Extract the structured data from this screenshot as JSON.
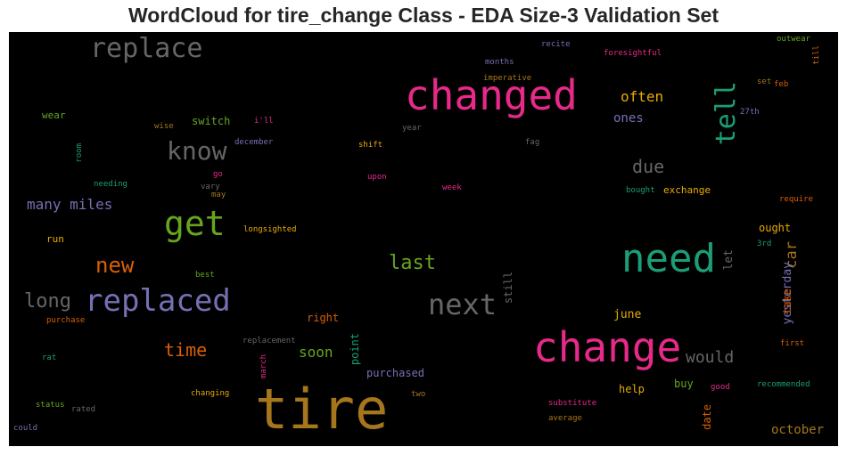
{
  "chart_data": {
    "type": "wordcloud",
    "title": "WordCloud for tire_change Class - EDA Size-3 Validation Set",
    "colors": {
      "pink": "#e7298a",
      "green": "#1b9e77",
      "lime": "#66a61e",
      "gray": "#666666",
      "purple": "#7570b3",
      "orange": "#d95f02",
      "gold": "#a6761d",
      "yellow": "#e6ab02",
      "background": "#000000"
    },
    "words": [
      {
        "text": "tire",
        "color": "#a6761d",
        "vertical": false
      },
      {
        "text": "changed",
        "color": "#e7298a",
        "vertical": false
      },
      {
        "text": "change",
        "color": "#e7298a",
        "vertical": false
      },
      {
        "text": "need",
        "color": "#1b9e77",
        "vertical": false
      },
      {
        "text": "replaced",
        "color": "#7570b3",
        "vertical": false
      },
      {
        "text": "get",
        "color": "#66a61e",
        "vertical": false
      },
      {
        "text": "replace",
        "color": "#666666",
        "vertical": false
      },
      {
        "text": "next",
        "color": "#666666",
        "vertical": false
      },
      {
        "text": "tell",
        "color": "#1b9e77",
        "vertical": true
      },
      {
        "text": "know",
        "color": "#666666",
        "vertical": false
      },
      {
        "text": "new",
        "color": "#d95f02",
        "vertical": false
      },
      {
        "text": "long",
        "color": "#666666",
        "vertical": false
      },
      {
        "text": "last",
        "color": "#66a61e",
        "vertical": false
      },
      {
        "text": "time",
        "color": "#d95f02",
        "vertical": false
      },
      {
        "text": "due",
        "color": "#666666",
        "vertical": false
      },
      {
        "text": "many miles",
        "color": "#7570b3",
        "vertical": false
      },
      {
        "text": "often",
        "color": "#e6ab02",
        "vertical": false
      },
      {
        "text": "would",
        "color": "#666666",
        "vertical": false
      },
      {
        "text": "soon",
        "color": "#66a61e",
        "vertical": false
      },
      {
        "text": "ones",
        "color": "#7570b3",
        "vertical": false
      },
      {
        "text": "car",
        "color": "#a6761d",
        "vertical": true
      },
      {
        "text": "october",
        "color": "#a6761d",
        "vertical": false
      },
      {
        "text": "exchange",
        "color": "#e6ab02",
        "vertical": false
      },
      {
        "text": "june",
        "color": "#e6ab02",
        "vertical": false
      },
      {
        "text": "purchased",
        "color": "#7570b3",
        "vertical": false
      },
      {
        "text": "right",
        "color": "#d95f02",
        "vertical": false
      },
      {
        "text": "ought",
        "color": "#e6ab02",
        "vertical": false
      },
      {
        "text": "help",
        "color": "#e6ab02",
        "vertical": false
      },
      {
        "text": "buy",
        "color": "#66a61e",
        "vertical": false
      },
      {
        "text": "yesterday",
        "color": "#7570b3",
        "vertical": true
      },
      {
        "text": "let",
        "color": "#666666",
        "vertical": true
      },
      {
        "text": "run",
        "color": "#e6ab02",
        "vertical": false
      },
      {
        "text": "switch",
        "color": "#66a61e",
        "vertical": false
      },
      {
        "text": "wear",
        "color": "#66a61e",
        "vertical": false
      },
      {
        "text": "point",
        "color": "#1b9e77",
        "vertical": true
      },
      {
        "text": "take",
        "color": "#d95f02",
        "vertical": true
      },
      {
        "text": "still",
        "color": "#666666",
        "vertical": true
      },
      {
        "text": "date",
        "color": "#d95f02",
        "vertical": true
      },
      {
        "text": "recite",
        "color": "#7570b3",
        "vertical": false
      },
      {
        "text": "foresightful",
        "color": "#e7298a",
        "vertical": false
      },
      {
        "text": "outwear",
        "color": "#66a61e",
        "vertical": false
      },
      {
        "text": "till",
        "color": "#d95f02",
        "vertical": true
      },
      {
        "text": "months",
        "color": "#7570b3",
        "vertical": false
      },
      {
        "text": "imperative",
        "color": "#a6761d",
        "vertical": false
      },
      {
        "text": "set",
        "color": "#a6761d",
        "vertical": false
      },
      {
        "text": "feb",
        "color": "#d95f02",
        "vertical": false
      },
      {
        "text": "27th",
        "color": "#7570b3",
        "vertical": false
      },
      {
        "text": "i'll",
        "color": "#e7298a",
        "vertical": false
      },
      {
        "text": "wise",
        "color": "#a6761d",
        "vertical": false
      },
      {
        "text": "year",
        "color": "#666666",
        "vertical": false
      },
      {
        "text": "december",
        "color": "#7570b3",
        "vertical": false
      },
      {
        "text": "shift",
        "color": "#e6ab02",
        "vertical": false
      },
      {
        "text": "fag",
        "color": "#666666",
        "vertical": false
      },
      {
        "text": "room",
        "color": "#1b9e77",
        "vertical": true
      },
      {
        "text": "go",
        "color": "#e7298a",
        "vertical": false
      },
      {
        "text": "vary",
        "color": "#666666",
        "vertical": false
      },
      {
        "text": "may",
        "color": "#a6761d",
        "vertical": false
      },
      {
        "text": "needing",
        "color": "#1b9e77",
        "vertical": false
      },
      {
        "text": "upon",
        "color": "#e7298a",
        "vertical": false
      },
      {
        "text": "week",
        "color": "#e7298a",
        "vertical": false
      },
      {
        "text": "bought",
        "color": "#1b9e77",
        "vertical": false
      },
      {
        "text": "require",
        "color": "#d95f02",
        "vertical": false
      },
      {
        "text": "longsighted",
        "color": "#e6ab02",
        "vertical": false
      },
      {
        "text": "3rd",
        "color": "#1b9e77",
        "vertical": false
      },
      {
        "text": "best",
        "color": "#66a61e",
        "vertical": false
      },
      {
        "text": "purchase",
        "color": "#d95f02",
        "vertical": false
      },
      {
        "text": "replacement",
        "color": "#666666",
        "vertical": false
      },
      {
        "text": "first",
        "color": "#d95f02",
        "vertical": false
      },
      {
        "text": "rat",
        "color": "#1b9e77",
        "vertical": false
      },
      {
        "text": "march",
        "color": "#e7298a",
        "vertical": true
      },
      {
        "text": "changing",
        "color": "#e6ab02",
        "vertical": false
      },
      {
        "text": "two",
        "color": "#a6761d",
        "vertical": false
      },
      {
        "text": "good",
        "color": "#e7298a",
        "vertical": false
      },
      {
        "text": "recommended",
        "color": "#1b9e77",
        "vertical": false
      },
      {
        "text": "status",
        "color": "#66a61e",
        "vertical": false
      },
      {
        "text": "rated",
        "color": "#666666",
        "vertical": false
      },
      {
        "text": "substitute",
        "color": "#e7298a",
        "vertical": false
      },
      {
        "text": "average",
        "color": "#a6761d",
        "vertical": false
      },
      {
        "text": "could",
        "color": "#7570b3",
        "vertical": false
      }
    ]
  }
}
